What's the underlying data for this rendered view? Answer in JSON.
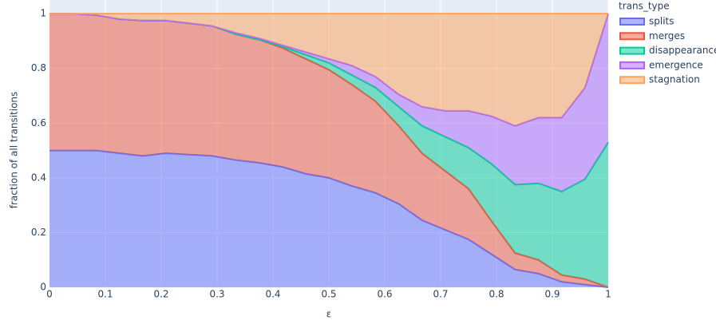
{
  "chart_data": {
    "type": "stacked-area",
    "x_label": "ε",
    "y_label": "fraction of all transitions",
    "legend_title": "trans_type",
    "x": [
      0,
      0.0417,
      0.0833,
      0.125,
      0.1667,
      0.2083,
      0.25,
      0.2917,
      0.3333,
      0.375,
      0.4167,
      0.4583,
      0.5,
      0.5417,
      0.5833,
      0.625,
      0.6667,
      0.7083,
      0.75,
      0.7917,
      0.8333,
      0.875,
      0.9167,
      0.9583,
      1
    ],
    "series": [
      {
        "name": "splits",
        "color": "#636efa",
        "values": [
          0.5,
          0.5,
          0.5,
          0.49,
          0.48,
          0.49,
          0.485,
          0.48,
          0.465,
          0.455,
          0.44,
          0.415,
          0.4,
          0.37,
          0.345,
          0.305,
          0.245,
          0.21,
          0.175,
          0.12,
          0.065,
          0.05,
          0.02,
          0.01,
          0
        ]
      },
      {
        "name": "merges",
        "color": "#EF553B",
        "values": [
          0.5,
          0.5,
          0.495,
          0.49,
          0.495,
          0.485,
          0.48,
          0.475,
          0.46,
          0.45,
          0.435,
          0.42,
          0.395,
          0.37,
          0.335,
          0.285,
          0.245,
          0.215,
          0.185,
          0.12,
          0.06,
          0.05,
          0.025,
          0.02,
          0
        ]
      },
      {
        "name": "disappearance",
        "color": "#00cc96",
        "values": [
          0,
          0,
          0,
          0,
          0,
          0,
          0,
          0,
          0,
          0,
          0.005,
          0.015,
          0.025,
          0.035,
          0.05,
          0.07,
          0.1,
          0.125,
          0.15,
          0.21,
          0.25,
          0.28,
          0.305,
          0.365,
          0.53
        ]
      },
      {
        "name": "emergence",
        "color": "#ab63fa",
        "values": [
          0,
          0,
          0,
          0,
          0,
          0,
          0,
          0,
          0.005,
          0.005,
          0.005,
          0.01,
          0.015,
          0.035,
          0.04,
          0.045,
          0.07,
          0.095,
          0.135,
          0.175,
          0.215,
          0.24,
          0.27,
          0.335,
          0.47
        ]
      },
      {
        "name": "stagnation",
        "color": "#FFA15A",
        "values": [
          0,
          0,
          0.005,
          0.02,
          0.025,
          0.025,
          0.035,
          0.045,
          0.07,
          0.09,
          0.115,
          0.14,
          0.165,
          0.19,
          0.23,
          0.295,
          0.34,
          0.355,
          0.355,
          0.375,
          0.41,
          0.38,
          0.38,
          0.27,
          0
        ]
      }
    ],
    "xlim": [
      0,
      1
    ],
    "xticks": [
      0,
      0.1,
      0.2,
      0.3,
      0.4,
      0.5,
      0.6,
      0.7,
      0.8,
      0.9,
      1
    ],
    "ylim": [
      0,
      1.05
    ],
    "yticks": [
      0,
      0.2,
      0.4,
      0.6,
      0.8,
      1
    ],
    "grid": true,
    "legend": "right"
  }
}
